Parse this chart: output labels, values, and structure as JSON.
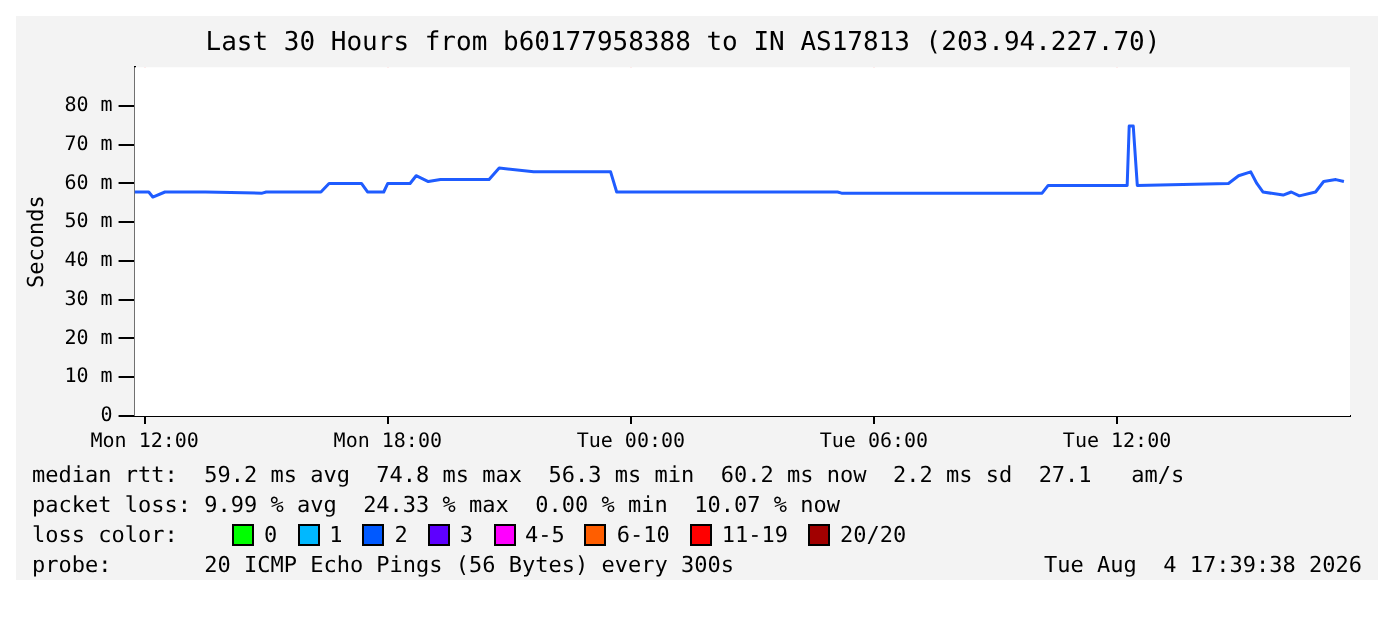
{
  "chart_data": {
    "type": "line",
    "title": "Last 30 Hours from b60177958388 to IN AS17813 (203.94.227.70)",
    "ylabel": "Seconds",
    "x": [
      "2026-08-03T11:45",
      "2026-08-03T12:06",
      "2026-08-03T12:12",
      "2026-08-03T12:30",
      "2026-08-03T13:30",
      "2026-08-03T14:54",
      "2026-08-03T15:00",
      "2026-08-03T16:21",
      "2026-08-03T16:33",
      "2026-08-03T17:21",
      "2026-08-03T17:30",
      "2026-08-03T17:54",
      "2026-08-03T18:00",
      "2026-08-03T18:33",
      "2026-08-03T18:42",
      "2026-08-03T19:00",
      "2026-08-03T19:18",
      "2026-08-03T19:30",
      "2026-08-03T20:30",
      "2026-08-03T20:45",
      "2026-08-03T21:36",
      "2026-08-03T23:30",
      "2026-08-03T23:39",
      "2026-08-04T05:06",
      "2026-08-04T05:12",
      "2026-08-04T10:09",
      "2026-08-04T10:18",
      "2026-08-04T12:15",
      "2026-08-04T12:18",
      "2026-08-04T12:24",
      "2026-08-04T12:30",
      "2026-08-04T14:45",
      "2026-08-04T15:00",
      "2026-08-04T15:18",
      "2026-08-04T15:27",
      "2026-08-04T15:36",
      "2026-08-04T16:06",
      "2026-08-04T16:18",
      "2026-08-04T16:30",
      "2026-08-04T16:54",
      "2026-08-04T17:06",
      "2026-08-04T17:24",
      "2026-08-04T17:36"
    ],
    "series": [
      {
        "color": "#1f5cff",
        "values": [
          57.8,
          57.8,
          56.5,
          57.8,
          57.8,
          57.5,
          57.8,
          57.8,
          60.0,
          60.0,
          57.8,
          57.8,
          60.0,
          60.0,
          62.0,
          60.5,
          61.0,
          61.0,
          61.0,
          64.0,
          63.0,
          63.0,
          57.8,
          57.8,
          57.5,
          57.5,
          59.5,
          59.5,
          74.8,
          74.8,
          59.5,
          60.0,
          62.0,
          63.0,
          60.0,
          57.8,
          57.0,
          57.8,
          56.8,
          57.8,
          60.5,
          61.0,
          60.5
        ]
      }
    ],
    "xlim": [
      "2026-08-03T11:45",
      "2026-08-04T17:45"
    ],
    "xticks": [
      {
        "value": "2026-08-03T12:00",
        "label": "Mon 12:00"
      },
      {
        "value": "2026-08-03T18:00",
        "label": "Mon 18:00"
      },
      {
        "value": "2026-08-04T00:00",
        "label": "Tue 00:00"
      },
      {
        "value": "2026-08-04T06:00",
        "label": "Tue 06:00"
      },
      {
        "value": "2026-08-04T12:00",
        "label": "Tue 12:00"
      }
    ],
    "ylim": [
      0,
      90
    ],
    "yticks": [
      0,
      {
        "value": 10,
        "label": "10 m"
      },
      {
        "value": 20,
        "label": "20 m"
      },
      {
        "value": 30,
        "label": "30 m"
      },
      {
        "value": 40,
        "label": "40 m"
      },
      {
        "value": 50,
        "label": "50 m"
      },
      {
        "value": 60,
        "label": "60 m"
      },
      {
        "value": 70,
        "label": "70 m"
      },
      {
        "value": 80,
        "label": "80 m"
      }
    ],
    "grid": true,
    "legend": false,
    "marker": "none",
    "line_style": "solid",
    "annotations": [
      "median rtt:  59.2 ms avg  74.8 ms max  56.3 ms min  60.2 ms now  2.2 ms sd  27.1   am/s",
      "packet loss: 9.99 % avg  24.33 % max  0.00 % min  10.07 % now",
      "loss color:",
      "probe:       20 ICMP Echo Pings (56 Bytes) every 300s",
      "Tue Aug  4 17:39:38 2026",
      "0",
      "1",
      "2",
      "3",
      "4-5",
      "6-10",
      "11-19",
      "20/20"
    ]
  }
}
